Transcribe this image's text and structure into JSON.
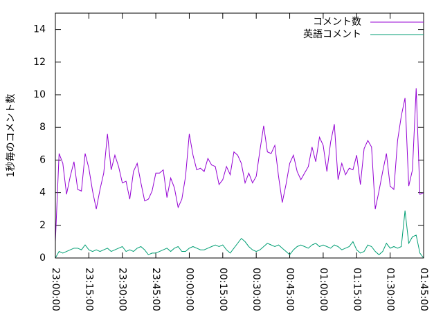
{
  "chart_data": {
    "type": "line",
    "y_label": "1秒毎のコメント数",
    "x": [
      "23:00:00",
      "23:01:40",
      "23:03:20",
      "23:05:00",
      "23:06:40",
      "23:08:20",
      "23:10:00",
      "23:11:40",
      "23:13:20",
      "23:15:00",
      "23:16:40",
      "23:18:20",
      "23:20:00",
      "23:21:40",
      "23:23:20",
      "23:25:00",
      "23:26:40",
      "23:28:20",
      "23:30:00",
      "23:31:40",
      "23:33:20",
      "23:35:00",
      "23:36:40",
      "23:38:20",
      "23:40:00",
      "23:41:40",
      "23:43:20",
      "23:45:00",
      "23:46:40",
      "23:48:20",
      "23:50:00",
      "23:51:40",
      "23:53:20",
      "23:55:00",
      "23:56:40",
      "23:58:20",
      "00:00:00",
      "00:01:40",
      "00:03:20",
      "00:05:00",
      "00:06:40",
      "00:08:20",
      "00:10:00",
      "00:11:40",
      "00:13:20",
      "00:15:00",
      "00:16:40",
      "00:18:20",
      "00:20:00",
      "00:21:40",
      "00:23:20",
      "00:25:00",
      "00:26:40",
      "00:28:20",
      "00:30:00",
      "00:31:40",
      "00:33:20",
      "00:35:00",
      "00:36:40",
      "00:38:20",
      "00:40:00",
      "00:41:40",
      "00:43:20",
      "00:45:00",
      "00:46:40",
      "00:48:20",
      "00:50:00",
      "00:51:40",
      "00:53:20",
      "00:55:00",
      "00:56:40",
      "00:58:20",
      "01:00:00",
      "01:01:40",
      "01:03:20",
      "01:05:00",
      "01:06:40",
      "01:08:20",
      "01:10:00",
      "01:11:40",
      "01:13:20",
      "01:15:00",
      "01:16:40",
      "01:18:20",
      "01:20:00",
      "01:21:40",
      "01:23:20",
      "01:25:00",
      "01:26:40",
      "01:28:20",
      "01:30:00",
      "01:31:40",
      "01:33:20",
      "01:35:00",
      "01:36:40",
      "01:38:20",
      "01:40:00",
      "01:41:40",
      "01:43:20",
      "01:45:00"
    ],
    "series": [
      {
        "name": "コメント数",
        "color": "#9400d3",
        "values": [
          1.0,
          6.4,
          5.8,
          3.9,
          5.0,
          5.9,
          4.2,
          4.1,
          6.4,
          5.5,
          4.1,
          3.0,
          4.2,
          5.2,
          7.6,
          5.4,
          6.3,
          5.6,
          4.6,
          4.7,
          3.6,
          5.3,
          5.8,
          4.6,
          3.5,
          3.6,
          4.1,
          5.2,
          5.2,
          5.4,
          3.7,
          4.9,
          4.3,
          3.1,
          3.6,
          5.0,
          7.6,
          6.3,
          5.4,
          5.5,
          5.3,
          6.1,
          5.7,
          5.6,
          4.5,
          4.8,
          5.6,
          5.1,
          6.5,
          6.3,
          5.8,
          4.6,
          5.2,
          4.6,
          5.0,
          6.6,
          8.1,
          6.5,
          6.4,
          6.9,
          5.0,
          3.4,
          4.5,
          5.8,
          6.3,
          5.3,
          4.8,
          5.2,
          5.6,
          6.8,
          5.9,
          7.4,
          6.9,
          5.3,
          7.1,
          8.2,
          4.8,
          5.8,
          5.1,
          5.5,
          5.4,
          6.3,
          4.5,
          6.7,
          7.2,
          6.8,
          3.0,
          4.1,
          5.3,
          6.4,
          4.4,
          4.2,
          7.2,
          8.7,
          9.8,
          4.4,
          5.4,
          10.4,
          3.9,
          4.0
        ]
      },
      {
        "name": "英語コメント",
        "color": "#009e73",
        "values": [
          0.0,
          0.4,
          0.3,
          0.4,
          0.5,
          0.6,
          0.6,
          0.5,
          0.8,
          0.5,
          0.4,
          0.5,
          0.4,
          0.5,
          0.6,
          0.4,
          0.5,
          0.6,
          0.7,
          0.4,
          0.5,
          0.4,
          0.6,
          0.7,
          0.5,
          0.2,
          0.3,
          0.3,
          0.4,
          0.5,
          0.6,
          0.4,
          0.6,
          0.7,
          0.4,
          0.4,
          0.6,
          0.7,
          0.6,
          0.5,
          0.5,
          0.6,
          0.7,
          0.8,
          0.7,
          0.8,
          0.5,
          0.3,
          0.6,
          0.9,
          1.2,
          1.0,
          0.7,
          0.5,
          0.4,
          0.5,
          0.7,
          0.9,
          0.8,
          0.7,
          0.8,
          0.6,
          0.4,
          0.2,
          0.5,
          0.7,
          0.8,
          0.7,
          0.6,
          0.8,
          0.9,
          0.7,
          0.8,
          0.7,
          0.6,
          0.8,
          0.7,
          0.5,
          0.6,
          0.7,
          1.0,
          0.5,
          0.3,
          0.4,
          0.8,
          0.7,
          0.4,
          0.2,
          0.4,
          0.9,
          0.6,
          0.7,
          0.6,
          0.7,
          2.9,
          0.9,
          1.3,
          1.4,
          0.3,
          0.0
        ]
      }
    ],
    "xlim": [
      "23:00:00",
      "01:45:00"
    ],
    "xticks": [
      "23:00:00",
      "23:15:00",
      "23:30:00",
      "23:45:00",
      "00:00:00",
      "00:15:00",
      "00:30:00",
      "00:45:00",
      "01:00:00",
      "01:15:00",
      "01:30:00",
      "01:45:00"
    ],
    "ylim": [
      0,
      15
    ],
    "yticks": [
      0,
      2,
      4,
      6,
      8,
      10,
      12,
      14
    ],
    "legend": "top-right"
  }
}
